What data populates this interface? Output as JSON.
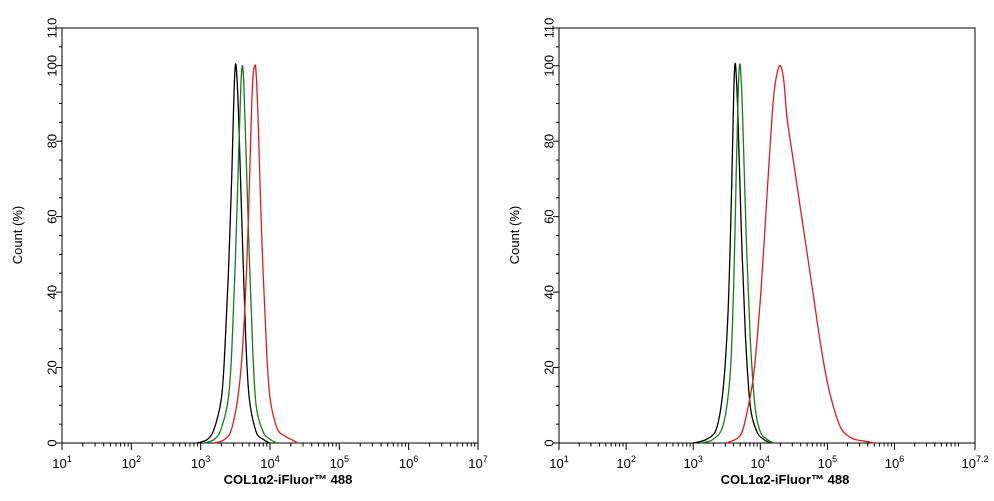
{
  "chart_data": [
    {
      "type": "line",
      "title": "",
      "xlabel": "COL1α2-iFluor™ 488",
      "ylabel": "Count  (%)",
      "xscale": "log",
      "xlim": [
        1,
        7
      ],
      "ylim": [
        0,
        110
      ],
      "x_ticks": [
        {
          "base": "10",
          "exp": "1"
        },
        {
          "base": "10",
          "exp": "2"
        },
        {
          "base": "10",
          "exp": "3"
        },
        {
          "base": "10",
          "exp": "4"
        },
        {
          "base": "10",
          "exp": "5"
        },
        {
          "base": "10",
          "exp": "6"
        },
        {
          "base": "10",
          "exp": "7"
        }
      ],
      "y_ticks": [
        "0",
        "20",
        "40",
        "60",
        "80",
        "100",
        "110"
      ],
      "grid": false,
      "series": [
        {
          "color": "#000000",
          "x": [
            2.95,
            3.1,
            3.2,
            3.3,
            3.35,
            3.4,
            3.45,
            3.48,
            3.5,
            3.52,
            3.55,
            3.6,
            3.65,
            3.7,
            3.8,
            3.9,
            4.0
          ],
          "y": [
            0,
            1,
            4,
            12,
            25,
            45,
            72,
            92,
            100,
            98,
            85,
            55,
            28,
            12,
            3,
            1,
            0
          ]
        },
        {
          "color": "#1a7a1a",
          "x": [
            3.05,
            3.2,
            3.3,
            3.4,
            3.45,
            3.5,
            3.55,
            3.58,
            3.6,
            3.62,
            3.65,
            3.7,
            3.75,
            3.8,
            3.9,
            4.0,
            4.1
          ],
          "y": [
            0,
            1,
            4,
            12,
            25,
            48,
            78,
            95,
            100,
            96,
            80,
            50,
            25,
            10,
            3,
            1,
            0
          ]
        },
        {
          "color": "#e31a1c",
          "x": [
            3.2,
            3.35,
            3.45,
            3.55,
            3.62,
            3.68,
            3.72,
            3.75,
            3.78,
            3.8,
            3.83,
            3.88,
            3.95,
            4.0,
            4.1,
            4.2,
            4.3,
            4.4
          ],
          "y": [
            0,
            1,
            4,
            14,
            30,
            55,
            80,
            96,
            100,
            98,
            85,
            55,
            25,
            12,
            4,
            2,
            1,
            0
          ]
        }
      ]
    },
    {
      "type": "line",
      "title": "",
      "xlabel": "COL1α2-iFluor™ 488",
      "ylabel": "Count  (%)",
      "xscale": "log",
      "xlim": [
        1,
        7.2
      ],
      "ylim": [
        0,
        110
      ],
      "x_ticks": [
        {
          "base": "10",
          "exp": "1"
        },
        {
          "base": "10",
          "exp": "2"
        },
        {
          "base": "10",
          "exp": "3"
        },
        {
          "base": "10",
          "exp": "4"
        },
        {
          "base": "10",
          "exp": "5"
        },
        {
          "base": "10",
          "exp": "6"
        },
        {
          "base": "10",
          "exp": "7.2"
        }
      ],
      "y_ticks": [
        "0",
        "20",
        "40",
        "60",
        "80",
        "100",
        "110"
      ],
      "grid": false,
      "series": [
        {
          "color": "#000000",
          "x": [
            3.0,
            3.2,
            3.35,
            3.45,
            3.52,
            3.57,
            3.6,
            3.62,
            3.64,
            3.67,
            3.72,
            3.78,
            3.85,
            3.95,
            4.05,
            4.15
          ],
          "y": [
            0,
            1,
            4,
            15,
            35,
            65,
            90,
            100,
            98,
            85,
            55,
            28,
            10,
            3,
            1,
            0
          ]
        },
        {
          "color": "#1a7a1a",
          "x": [
            3.1,
            3.3,
            3.45,
            3.55,
            3.6,
            3.64,
            3.67,
            3.69,
            3.71,
            3.74,
            3.79,
            3.85,
            3.92,
            4.0,
            4.1,
            4.2
          ],
          "y": [
            0,
            1,
            5,
            18,
            40,
            70,
            92,
            100,
            98,
            85,
            55,
            28,
            10,
            3,
            1,
            0
          ]
        },
        {
          "color": "#e31a1c",
          "x": [
            3.5,
            3.7,
            3.8,
            3.9,
            4.0,
            4.08,
            4.15,
            4.2,
            4.25,
            4.3,
            4.35,
            4.4,
            4.5,
            4.6,
            4.7,
            4.8,
            4.9,
            5.0,
            5.1,
            5.2,
            5.3,
            5.4,
            5.55,
            5.7
          ],
          "y": [
            0,
            2,
            8,
            18,
            38,
            60,
            80,
            92,
            98,
            100,
            96,
            86,
            74,
            62,
            50,
            38,
            26,
            16,
            9,
            4,
            2,
            1,
            0.5,
            0
          ]
        }
      ]
    }
  ]
}
